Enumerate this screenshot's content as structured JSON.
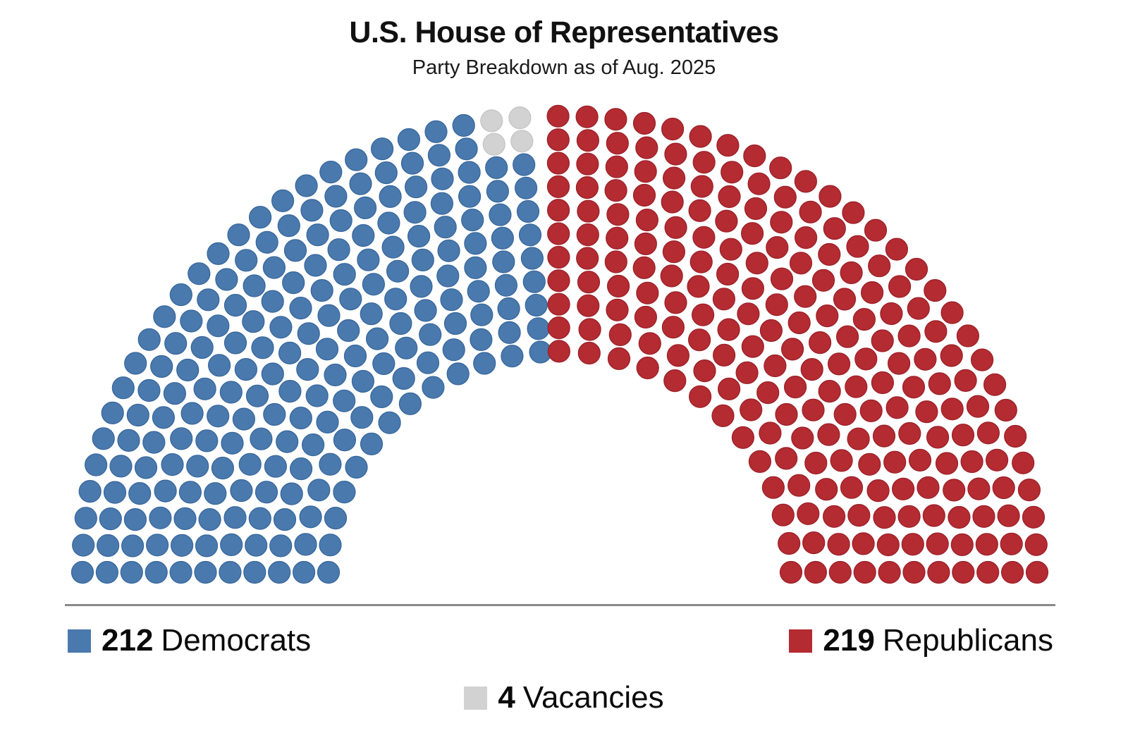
{
  "header": {
    "title": "U.S. House of Representatives",
    "subtitle": "Party Breakdown as of Aug. 2025"
  },
  "chart_data": {
    "type": "parliament",
    "title": "U.S. House of Representatives",
    "subtitle": "Party Breakdown as of Aug. 2025",
    "total_seats": 435,
    "rows": 11,
    "layout": "semicircle with center aisle, vacancies placed in the two outermost rows beside the aisle on the Democratic side",
    "series": [
      {
        "name": "Democrats",
        "seats": 212,
        "side": "left",
        "color": "#4a79ad",
        "stroke": "#35659a"
      },
      {
        "name": "Vacancies",
        "seats": 4,
        "side": "left",
        "color": "#d2d2d2",
        "stroke": "#c3c3c3"
      },
      {
        "name": "Republicans",
        "seats": 219,
        "side": "right",
        "color": "#b42b32",
        "stroke": "#9a1f27"
      }
    ],
    "legend_position": "bottom"
  },
  "legend": {
    "democrats": {
      "value": "212",
      "label": "Democrats",
      "color": "#4a79ad"
    },
    "republicans": {
      "value": "219",
      "label": "Republicans",
      "color": "#b42b32"
    },
    "vacancies": {
      "value": "4",
      "label": "Vacancies",
      "color": "#d2d2d2"
    }
  },
  "divider_color": "#8a8a8a"
}
